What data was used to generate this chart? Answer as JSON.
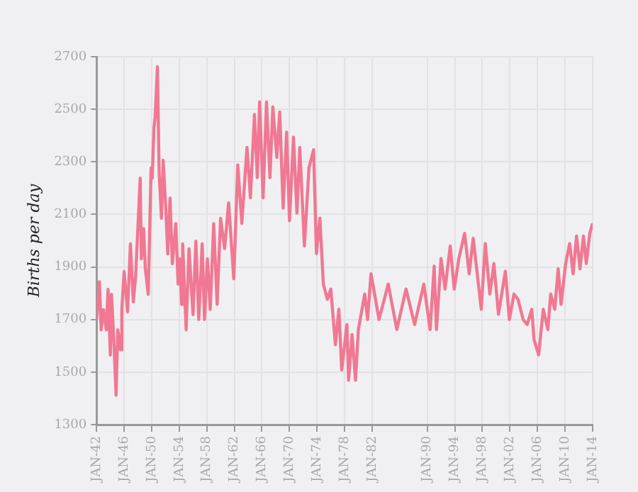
{
  "chart_data": {
    "type": "line",
    "ylabel": "Births per day",
    "color": "#f07892",
    "x": [
      "1942-01",
      "1942-06",
      "1942-09",
      "1943-01",
      "1943-06",
      "1943-09",
      "1944-01",
      "1944-03",
      "1944-07",
      "1944-11",
      "1945-02",
      "1945-07",
      "1945-09",
      "1946-01",
      "1946-07",
      "1946-12",
      "1947-05",
      "1947-09",
      "1948-05",
      "1948-07",
      "1948-11",
      "1949-02",
      "1949-07",
      "1949-12",
      "1950-02",
      "1950-05",
      "1950-07",
      "1950-11",
      "1951-02",
      "1951-06",
      "1951-09",
      "1952-02",
      "1952-05",
      "1952-09",
      "1953-01",
      "1953-07",
      "1953-11",
      "1954-02",
      "1954-05",
      "1954-07",
      "1955-01",
      "1955-06",
      "1956-01",
      "1956-06",
      "1956-11",
      "1957-05",
      "1957-09",
      "1958-02",
      "1958-07",
      "1959-01",
      "1959-07",
      "1960-01",
      "1960-08",
      "1961-03",
      "1961-12",
      "1962-07",
      "1963-02",
      "1963-11",
      "1964-05",
      "1964-12",
      "1965-05",
      "1965-09",
      "1966-03",
      "1966-09",
      "1967-03",
      "1967-08",
      "1968-03",
      "1968-08",
      "1969-02",
      "1969-08",
      "1970-01",
      "1970-08",
      "1971-02",
      "1971-07",
      "1972-03",
      "1972-11",
      "1973-07",
      "1973-12",
      "1974-06",
      "1974-12",
      "1975-07",
      "1976-01",
      "1976-09",
      "1977-03",
      "1977-08",
      "1978-05",
      "1978-08",
      "1979-02",
      "1979-08",
      "1980-01",
      "1980-12",
      "1981-05",
      "1981-11",
      "1983-01",
      "1984-05",
      "1985-08",
      "1986-12",
      "1988-03",
      "1989-07",
      "1990-06",
      "1991-01",
      "1991-05",
      "1992-01",
      "1992-08",
      "1993-05",
      "1993-12",
      "1994-08",
      "1995-06",
      "1996-02",
      "1996-09",
      "1997-05",
      "1997-11",
      "1998-06",
      "1999-02",
      "1999-09",
      "2000-05",
      "2001-05",
      "2001-12",
      "2002-08",
      "2003-03",
      "2003-12",
      "2004-07",
      "2005-03",
      "2005-07",
      "2006-03",
      "2006-11",
      "2007-07",
      "2007-12",
      "2008-07",
      "2009-01",
      "2009-06",
      "2010-02",
      "2010-09",
      "2011-03",
      "2011-09",
      "2012-03",
      "2012-09",
      "2013-02",
      "2013-08",
      "2014-01"
    ],
    "values": [
      1700,
      1844,
      1661,
      1738,
      1661,
      1815,
      1565,
      1796,
      1623,
      1412,
      1661,
      1585,
      1738,
      1883,
      1729,
      1988,
      1767,
      1863,
      2238,
      1931,
      2046,
      1892,
      1796,
      2277,
      2238,
      2431,
      2469,
      2662,
      2258,
      2085,
      2306,
      2104,
      1950,
      2162,
      1912,
      2065,
      1835,
      1931,
      1758,
      1988,
      1661,
      1969,
      1719,
      1998,
      1700,
      1988,
      1700,
      1931,
      1738,
      2065,
      1758,
      2085,
      1970,
      2144,
      1855,
      2288,
      2066,
      2355,
      2163,
      2480,
      2240,
      2528,
      2163,
      2528,
      2240,
      2509,
      2317,
      2490,
      2124,
      2413,
      2076,
      2394,
      2105,
      2355,
      1980,
      2278,
      2346,
      1951,
      2086,
      1835,
      1777,
      1816,
      1604,
      1739,
      1508,
      1681,
      1469,
      1643,
      1469,
      1662,
      1797,
      1700,
      1874,
      1700,
      1835,
      1662,
      1816,
      1681,
      1835,
      1662,
      1903,
      1662,
      1932,
      1816,
      1980,
      1816,
      1932,
      2028,
      1874,
      2009,
      1855,
      1739,
      1989,
      1797,
      1913,
      1720,
      1884,
      1700,
      1797,
      1777,
      1700,
      1681,
      1739,
      1623,
      1566,
      1739,
      1662,
      1797,
      1739,
      1893,
      1758,
      1913,
      1989,
      1874,
      2018,
      1893,
      2018,
      1913,
      2028,
      2066
    ],
    "xlim": [
      "1942-01",
      "2014-01"
    ],
    "xticks": [
      {
        "value": "1942-01",
        "label": "JAN-42"
      },
      {
        "value": "1946-01",
        "label": "JAN-46"
      },
      {
        "value": "1950-01",
        "label": "JAN-50"
      },
      {
        "value": "1954-01",
        "label": "JAN-54"
      },
      {
        "value": "1958-01",
        "label": "JAN-58"
      },
      {
        "value": "1962-01",
        "label": "JAN-62"
      },
      {
        "value": "1966-01",
        "label": "JAN-66"
      },
      {
        "value": "1970-01",
        "label": "JAN-70"
      },
      {
        "value": "1974-01",
        "label": "JAN-74"
      },
      {
        "value": "1978-01",
        "label": "JAN-78"
      },
      {
        "value": "1982-01",
        "label": "JAN-82"
      },
      {
        "value": "1990-01",
        "label": "JAN-90"
      },
      {
        "value": "1994-01",
        "label": "JAN-94"
      },
      {
        "value": "1998-01",
        "label": "JAN-98"
      },
      {
        "value": "2002-01",
        "label": "JAN-02"
      },
      {
        "value": "2006-01",
        "label": "JAN-06"
      },
      {
        "value": "2010-01",
        "label": "JAN-10"
      },
      {
        "value": "2014-01",
        "label": "JAN-14"
      }
    ],
    "ylim": [
      1300,
      2700
    ],
    "yticks": [
      1300,
      1500,
      1700,
      1900,
      2100,
      2300,
      2500,
      2700
    ],
    "grid": true,
    "marker": "none",
    "line_style": "solid"
  }
}
